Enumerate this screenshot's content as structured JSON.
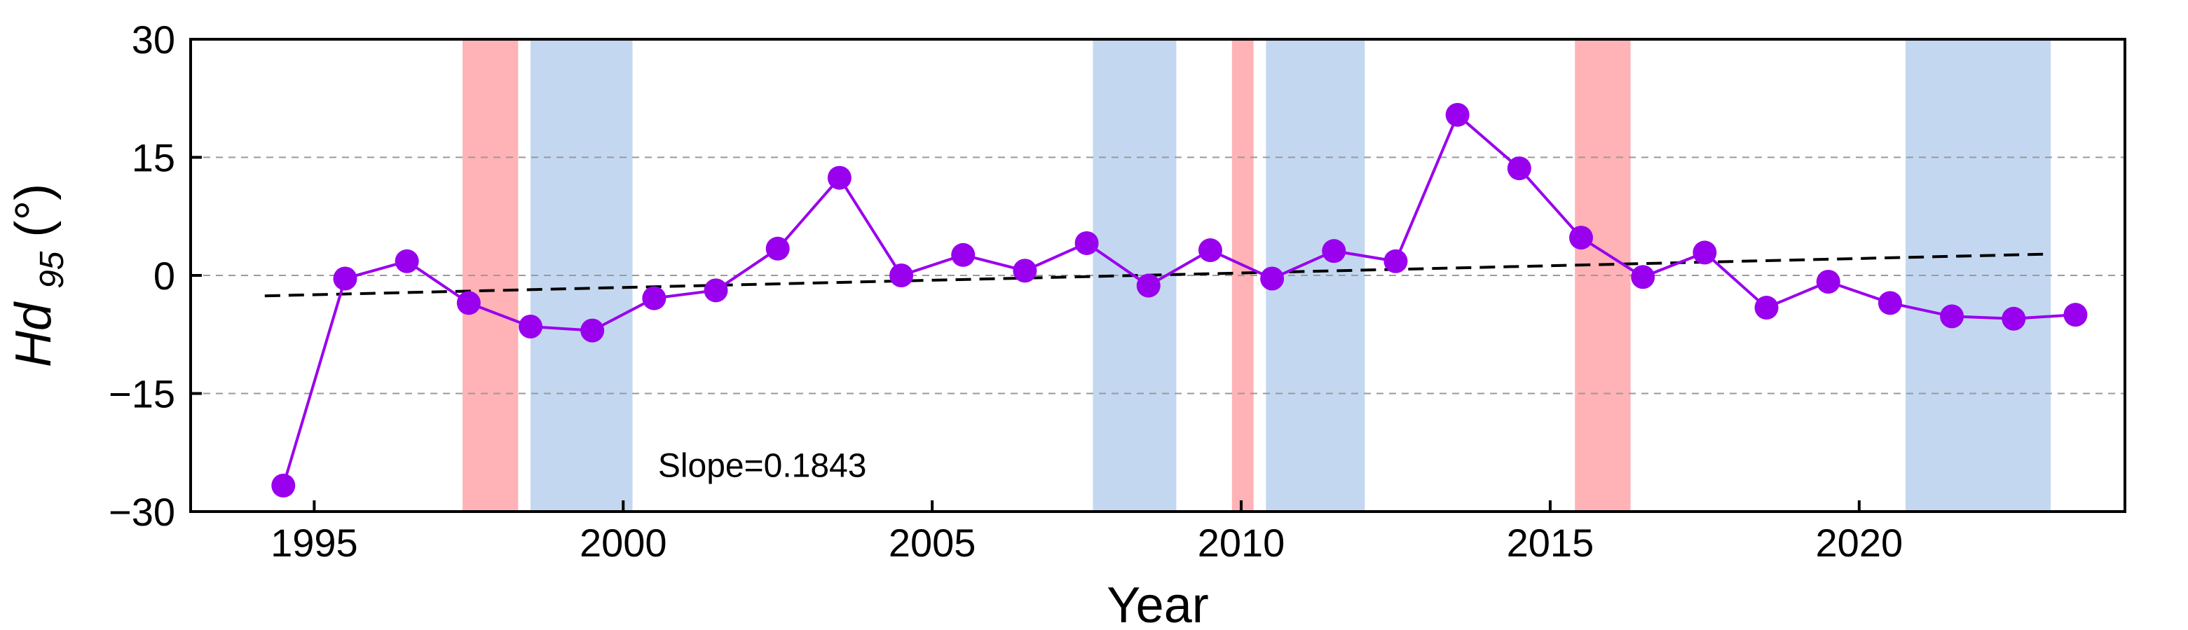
{
  "chart_data": {
    "type": "line",
    "title": "",
    "xlabel": "Year",
    "ylabel_main": "Hd",
    "ylabel_sub": "95",
    "ylabel_unit": " (°)",
    "xlim": [
      1993.0,
      2024.3
    ],
    "ylim": [
      -30,
      30
    ],
    "xticks": [
      1995,
      2000,
      2005,
      2010,
      2015,
      2020
    ],
    "xtick_labels": [
      "1995",
      "2000",
      "2005",
      "2010",
      "2015",
      "2020"
    ],
    "yticks": [
      -30,
      -15,
      0,
      15,
      30
    ],
    "ytick_labels": [
      "−30",
      "−15",
      "0",
      "15",
      "30"
    ],
    "grid_y": [
      -15,
      0,
      15
    ],
    "series": [
      {
        "x": [
          1994.5,
          1995.5,
          1996.5,
          1997.5,
          1998.5,
          1999.5,
          2000.5,
          2001.5,
          2002.5,
          2003.5,
          2004.5,
          2005.5,
          2006.5,
          2007.5,
          2008.5,
          2009.5,
          2010.5,
          2011.5,
          2012.5,
          2013.5,
          2014.5,
          2015.5,
          2016.5,
          2017.5,
          2018.5,
          2019.5,
          2020.5,
          2021.5,
          2022.5,
          2023.5
        ],
        "values": [
          -26.7,
          -0.4,
          1.8,
          -3.5,
          -6.5,
          -7.0,
          -2.9,
          -1.9,
          3.4,
          12.4,
          0.0,
          2.6,
          0.6,
          4.1,
          -1.3,
          3.2,
          -0.4,
          3.1,
          1.8,
          20.4,
          13.6,
          4.8,
          -0.2,
          2.9,
          -4.1,
          -0.8,
          -3.5,
          -5.2,
          -5.5,
          -5.0
        ],
        "color": "#9900ee"
      }
    ],
    "trend": {
      "x": [
        1994.2,
        2023.0
      ],
      "y": [
        -2.6,
        2.7
      ],
      "color": "#000000",
      "style": "dashed"
    },
    "shaded_regions": [
      {
        "x_start": 1997.4,
        "x_end": 1998.3,
        "color": "#ffb3b6"
      },
      {
        "x_start": 1998.5,
        "x_end": 2000.15,
        "color": "#c3d8f0"
      },
      {
        "x_start": 2007.6,
        "x_end": 2008.95,
        "color": "#c3d8f0"
      },
      {
        "x_start": 2009.85,
        "x_end": 2010.2,
        "color": "#ffb3b6"
      },
      {
        "x_start": 2010.4,
        "x_end": 2012.0,
        "color": "#c3d8f0"
      },
      {
        "x_start": 2015.4,
        "x_end": 2016.3,
        "color": "#ffb3b6"
      },
      {
        "x_start": 2020.75,
        "x_end": 2023.1,
        "color": "#c3d8f0"
      }
    ],
    "annotation": {
      "text": "Slope=0.1843",
      "x": 2002.25,
      "y": -24
    },
    "legend": "none",
    "colors": {
      "line": "#9900ee",
      "marker": "#9900ee",
      "trend": "#000000",
      "grid": "#9a9a9a",
      "warm_band": "#ffb3b6",
      "cool_band": "#c3d8f0"
    }
  }
}
